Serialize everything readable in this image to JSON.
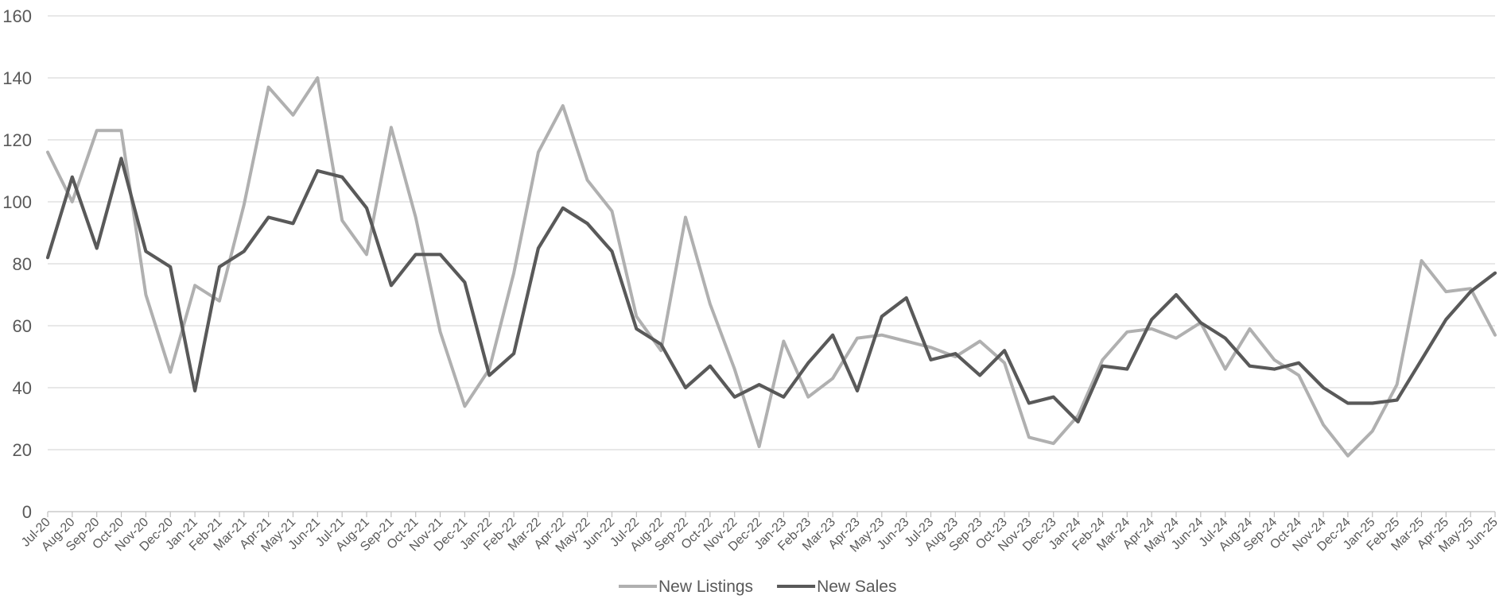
{
  "chart_data": {
    "type": "line",
    "title": "",
    "xlabel": "",
    "ylabel": "",
    "ylim": [
      0,
      160
    ],
    "yticks": [
      0,
      20,
      40,
      60,
      80,
      100,
      120,
      140,
      160
    ],
    "grid": true,
    "legend_position": "bottom-center",
    "categories": [
      "Jul-20",
      "Aug-20",
      "Sep-20",
      "Oct-20",
      "Nov-20",
      "Dec-20",
      "Jan-21",
      "Feb-21",
      "Mar-21",
      "Apr-21",
      "May-21",
      "Jun-21",
      "Jul-21",
      "Aug-21",
      "Sep-21",
      "Oct-21",
      "Nov-21",
      "Dec-21",
      "Jan-22",
      "Feb-22",
      "Mar-22",
      "Apr-22",
      "May-22",
      "Jun-22",
      "Jul-22",
      "Aug-22",
      "Sep-22",
      "Oct-22",
      "Nov-22",
      "Dec-22",
      "Jan-23",
      "Feb-23",
      "Mar-23",
      "Apr-23",
      "May-23",
      "Jun-23",
      "Jul-23",
      "Aug-23",
      "Sep-23",
      "Oct-23",
      "Nov-23",
      "Dec-23",
      "Jan-24",
      "Feb-24",
      "Mar-24",
      "Apr-24",
      "May-24",
      "Jun-24",
      "Jul-24",
      "Aug-24",
      "Sep-24",
      "Oct-24",
      "Nov-24",
      "Dec-24",
      "Jan-25",
      "Feb-25",
      "Mar-25",
      "Apr-25",
      "May-25",
      "Jun-25"
    ],
    "series": [
      {
        "name": "New Listings",
        "color": "#b0b0b0",
        "values": [
          116,
          100,
          123,
          123,
          70,
          45,
          73,
          68,
          99,
          137,
          128,
          140,
          94,
          83,
          124,
          95,
          58,
          34,
          46,
          77,
          116,
          131,
          107,
          97,
          63,
          52,
          95,
          67,
          46,
          21,
          55,
          37,
          43,
          56,
          57,
          55,
          53,
          50,
          55,
          48,
          24,
          22,
          31,
          49,
          58,
          59,
          56,
          61,
          46,
          59,
          49,
          44,
          28,
          18,
          26,
          41,
          81,
          71,
          72,
          57
        ]
      },
      {
        "name": "New Sales",
        "color": "#595959",
        "values": [
          82,
          108,
          85,
          114,
          84,
          79,
          39,
          79,
          84,
          95,
          93,
          110,
          108,
          98,
          73,
          83,
          83,
          74,
          44,
          51,
          85,
          98,
          93,
          84,
          59,
          54,
          40,
          47,
          37,
          41,
          37,
          48,
          57,
          39,
          63,
          69,
          49,
          51,
          44,
          52,
          35,
          37,
          29,
          47,
          46,
          62,
          70,
          61,
          56,
          47,
          46,
          48,
          40,
          35,
          35,
          36,
          49,
          62,
          71,
          77
        ]
      }
    ]
  }
}
